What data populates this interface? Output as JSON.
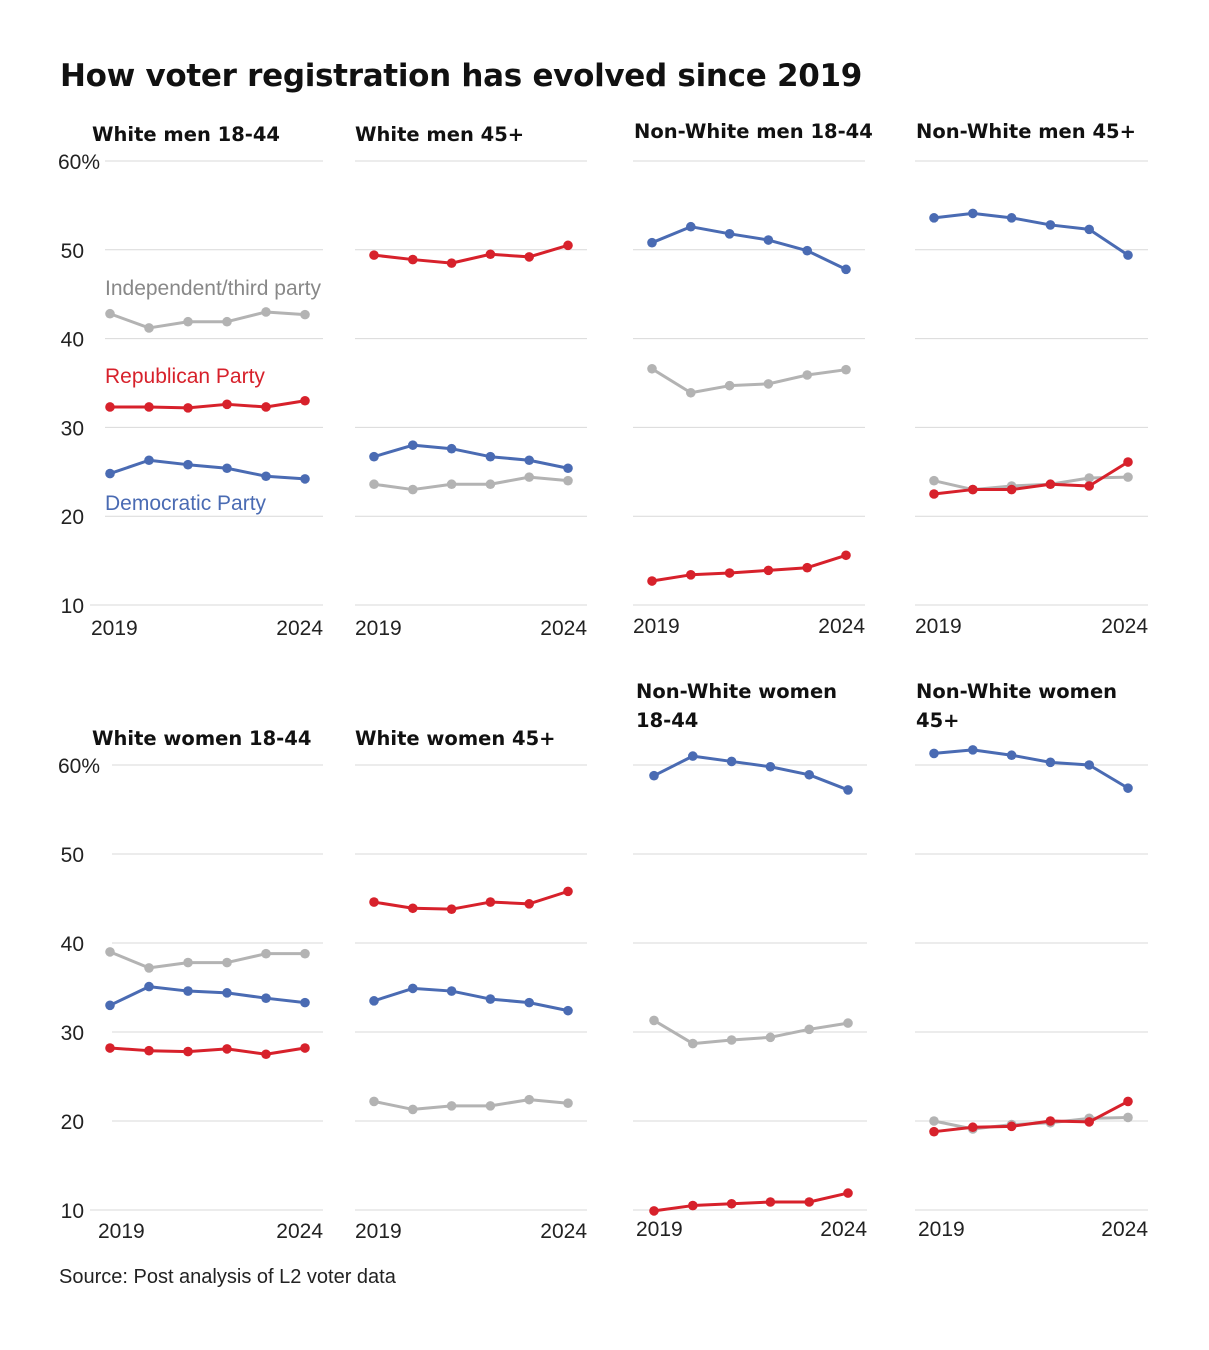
{
  "title": "How voter registration has evolved since 2019",
  "source": "Source: Post analysis of L2 voter data",
  "colors": {
    "Democratic Party": "#4a6bb3",
    "Republican Party": "#d7212b",
    "Independent/third party": "#b3b3b3",
    "grid": "#d9d9d9"
  },
  "chart_data": {
    "type": "line",
    "x": [
      2019,
      2020,
      2021,
      2022,
      2023,
      2024
    ],
    "x_tick_labels": [
      "2019",
      "2024"
    ],
    "y_ticks": [
      10,
      20,
      30,
      40,
      50,
      60
    ],
    "y_tick_labels": [
      "10",
      "20",
      "30",
      "40",
      "50",
      "60%"
    ],
    "ylim": [
      10,
      60
    ],
    "grid": "horizontal",
    "series_labels": [
      "Independent/third party",
      "Republican Party",
      "Democratic Party"
    ],
    "panels": [
      {
        "title": "White men 18-44",
        "series": [
          {
            "name": "Independent/third party",
            "values": [
              42.8,
              41.2,
              41.9,
              41.9,
              43.0,
              42.7
            ]
          },
          {
            "name": "Republican Party",
            "values": [
              32.3,
              32.3,
              32.2,
              32.6,
              32.3,
              33.0
            ]
          },
          {
            "name": "Democratic Party",
            "values": [
              24.8,
              26.3,
              25.8,
              25.4,
              24.5,
              24.2
            ]
          }
        ]
      },
      {
        "title": "White men 45+",
        "series": [
          {
            "name": "Independent/third party",
            "values": [
              23.6,
              23.0,
              23.6,
              23.6,
              24.4,
              24.0
            ]
          },
          {
            "name": "Republican Party",
            "values": [
              49.4,
              48.9,
              48.5,
              49.5,
              49.2,
              50.5
            ]
          },
          {
            "name": "Democratic Party",
            "values": [
              26.7,
              28.0,
              27.6,
              26.7,
              26.3,
              25.4
            ]
          }
        ]
      },
      {
        "title": "Non-White men 18-44",
        "series": [
          {
            "name": "Independent/third party",
            "values": [
              36.6,
              33.9,
              34.7,
              34.9,
              35.9,
              36.5
            ]
          },
          {
            "name": "Republican Party",
            "values": [
              12.7,
              13.4,
              13.6,
              13.9,
              14.2,
              15.6
            ]
          },
          {
            "name": "Democratic Party",
            "values": [
              50.8,
              52.6,
              51.8,
              51.1,
              49.9,
              47.8
            ]
          }
        ]
      },
      {
        "title": "Non-White men 45+",
        "series": [
          {
            "name": "Independent/third party",
            "values": [
              24.0,
              23.0,
              23.4,
              23.6,
              24.3,
              24.4
            ]
          },
          {
            "name": "Republican Party",
            "values": [
              22.5,
              23.0,
              23.0,
              23.6,
              23.4,
              26.1
            ]
          },
          {
            "name": "Democratic Party",
            "values": [
              53.6,
              54.1,
              53.6,
              52.8,
              52.3,
              49.4
            ]
          }
        ]
      },
      {
        "title": "White women 18-44",
        "series": [
          {
            "name": "Independent/third party",
            "values": [
              39.0,
              37.2,
              37.8,
              37.8,
              38.8,
              38.8
            ]
          },
          {
            "name": "Republican Party",
            "values": [
              28.2,
              27.9,
              27.8,
              28.1,
              27.5,
              28.2
            ]
          },
          {
            "name": "Democratic Party",
            "values": [
              33.0,
              35.1,
              34.6,
              34.4,
              33.8,
              33.3
            ]
          }
        ]
      },
      {
        "title": "White women 45+",
        "series": [
          {
            "name": "Independent/third party",
            "values": [
              22.2,
              21.3,
              21.7,
              21.7,
              22.4,
              22.0
            ]
          },
          {
            "name": "Republican Party",
            "values": [
              44.6,
              43.9,
              43.8,
              44.6,
              44.4,
              45.8
            ]
          },
          {
            "name": "Democratic Party",
            "values": [
              33.5,
              34.9,
              34.6,
              33.7,
              33.3,
              32.4
            ]
          }
        ]
      },
      {
        "title": "Non-White women 18-44",
        "series": [
          {
            "name": "Independent/third party",
            "values": [
              31.3,
              28.7,
              29.1,
              29.4,
              30.3,
              31.0
            ]
          },
          {
            "name": "Republican Party",
            "values": [
              9.9,
              10.5,
              10.7,
              10.9,
              10.9,
              11.9
            ]
          },
          {
            "name": "Democratic Party",
            "values": [
              58.8,
              61.0,
              60.4,
              59.8,
              58.9,
              57.2
            ]
          }
        ]
      },
      {
        "title": "Non-White women 45+",
        "series": [
          {
            "name": "Independent/third party",
            "values": [
              20.0,
              19.1,
              19.6,
              19.8,
              20.3,
              20.4
            ]
          },
          {
            "name": "Republican Party",
            "values": [
              18.8,
              19.3,
              19.4,
              20.0,
              19.9,
              22.2
            ]
          },
          {
            "name": "Democratic Party",
            "values": [
              61.3,
              61.7,
              61.1,
              60.3,
              60.0,
              57.4
            ]
          }
        ]
      }
    ]
  }
}
